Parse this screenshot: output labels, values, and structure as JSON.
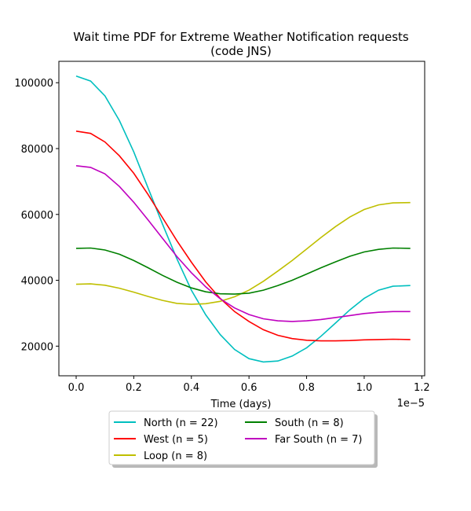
{
  "chart_data": {
    "type": "line",
    "title_lines": [
      "Wait time PDF for Extreme Weather Notification  requests",
      "(code JNS)"
    ],
    "xlabel": "Time (days)",
    "x_offset_label": "1e−5",
    "xlim": [
      -0.06,
      1.21
    ],
    "ylim": [
      11000,
      106500
    ],
    "x_ticks": [
      0.0,
      0.2,
      0.4,
      0.6,
      0.8,
      1.0,
      1.2
    ],
    "x_tick_labels": [
      "0.0",
      "0.2",
      "0.4",
      "0.6",
      "0.8",
      "1.0",
      "1.2"
    ],
    "y_ticks": [
      20000,
      40000,
      60000,
      80000,
      100000
    ],
    "y_tick_labels": [
      "20000",
      "40000",
      "60000",
      "80000",
      "100000"
    ],
    "legend_position": "below",
    "series": [
      {
        "name": "North (n = 22)",
        "color": "#00bfbf",
        "x": [
          0.0,
          0.05,
          0.1,
          0.15,
          0.2,
          0.25,
          0.3,
          0.35,
          0.4,
          0.45,
          0.5,
          0.55,
          0.6,
          0.65,
          0.7,
          0.75,
          0.8,
          0.85,
          0.9,
          0.95,
          1.0,
          1.05,
          1.1,
          1.16
        ],
        "y": [
          102000,
          100500,
          96000,
          88500,
          79000,
          68000,
          57000,
          46500,
          37000,
          29500,
          23500,
          19000,
          16200,
          15200,
          15500,
          17000,
          19500,
          23000,
          27000,
          31000,
          34500,
          37000,
          38200,
          38400
        ]
      },
      {
        "name": "West (n = 5)",
        "color": "#ff0000",
        "x": [
          0.0,
          0.05,
          0.1,
          0.15,
          0.2,
          0.25,
          0.3,
          0.35,
          0.4,
          0.45,
          0.5,
          0.55,
          0.6,
          0.65,
          0.7,
          0.75,
          0.8,
          0.85,
          0.9,
          0.95,
          1.0,
          1.05,
          1.1,
          1.16
        ],
        "y": [
          85300,
          84600,
          82000,
          77800,
          72500,
          66000,
          59000,
          52000,
          45500,
          39500,
          34500,
          30500,
          27500,
          25000,
          23300,
          22300,
          21800,
          21600,
          21600,
          21700,
          21900,
          22000,
          22100,
          22000
        ]
      },
      {
        "name": "Loop (n = 8)",
        "color": "#bfbf00",
        "x": [
          0.0,
          0.05,
          0.1,
          0.15,
          0.2,
          0.25,
          0.3,
          0.35,
          0.4,
          0.45,
          0.5,
          0.55,
          0.6,
          0.65,
          0.7,
          0.75,
          0.8,
          0.85,
          0.9,
          0.95,
          1.0,
          1.05,
          1.1,
          1.16
        ],
        "y": [
          38800,
          38900,
          38500,
          37600,
          36400,
          35100,
          33900,
          33000,
          32700,
          32900,
          33600,
          35000,
          37000,
          39700,
          42800,
          46000,
          49500,
          53000,
          56300,
          59200,
          61500,
          62900,
          63500,
          63600
        ]
      },
      {
        "name": "South (n = 8)",
        "color": "#008000",
        "x": [
          0.0,
          0.05,
          0.1,
          0.15,
          0.2,
          0.25,
          0.3,
          0.35,
          0.4,
          0.45,
          0.5,
          0.55,
          0.6,
          0.65,
          0.7,
          0.75,
          0.8,
          0.85,
          0.9,
          0.95,
          1.0,
          1.05,
          1.1,
          1.16
        ],
        "y": [
          49700,
          49800,
          49200,
          47900,
          46000,
          43800,
          41500,
          39400,
          37700,
          36500,
          35900,
          35800,
          36100,
          37000,
          38400,
          40000,
          41900,
          43800,
          45600,
          47300,
          48600,
          49400,
          49800,
          49700
        ]
      },
      {
        "name": "Far South (n = 7)",
        "color": "#bf00bf",
        "x": [
          0.0,
          0.05,
          0.1,
          0.15,
          0.2,
          0.25,
          0.3,
          0.35,
          0.4,
          0.45,
          0.5,
          0.55,
          0.6,
          0.65,
          0.7,
          0.75,
          0.8,
          0.85,
          0.9,
          0.95,
          1.0,
          1.05,
          1.1,
          1.16
        ],
        "y": [
          74800,
          74300,
          72300,
          68500,
          63700,
          58300,
          52700,
          47200,
          42300,
          38000,
          34400,
          31600,
          29600,
          28300,
          27700,
          27500,
          27700,
          28100,
          28700,
          29300,
          29900,
          30300,
          30500,
          30500
        ]
      }
    ]
  }
}
